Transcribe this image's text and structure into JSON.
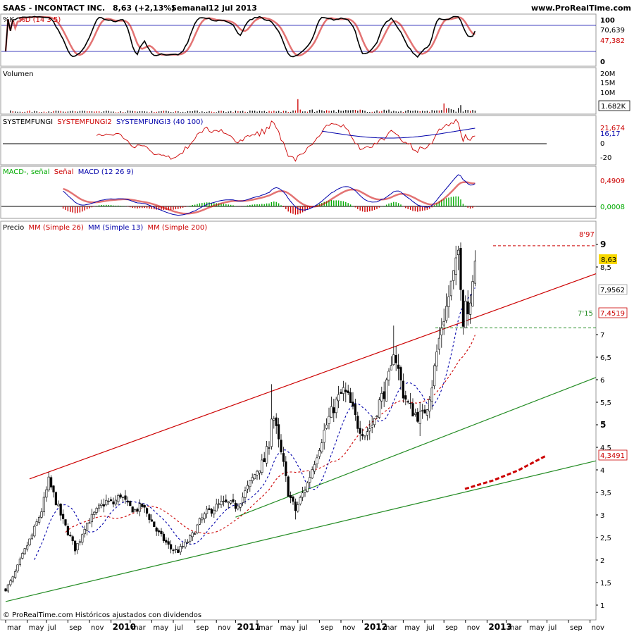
{
  "header": {
    "instrument": "SAAS - INCONTACT INC.",
    "last_change": "8,63 (+2,13%)",
    "period": "Semanal",
    "date": "12 jul 2013",
    "site": "www.ProRealTime.com"
  },
  "footer": {
    "source": "© ProRealTime.com Históricos ajustados con dividendos"
  },
  "colors": {
    "black": "#000000",
    "red": "#cc0000",
    "blue": "#0000aa",
    "green": "#00aa00",
    "pink_fill": "#f0a0a0",
    "green_fill": "#a8e0a0",
    "trend_green": "#228b22",
    "highlight": "#f8d800"
  },
  "x_axis": {
    "labels": [
      {
        "t": 0,
        "text": "mar"
      },
      {
        "t": 9,
        "text": "may"
      },
      {
        "t": 17,
        "text": "jul"
      },
      {
        "t": 26,
        "text": "sep"
      },
      {
        "t": 35,
        "text": "nov"
      },
      {
        "t": 44,
        "text": "2010",
        "bold": true
      },
      {
        "t": 52,
        "text": "mar"
      },
      {
        "t": 61,
        "text": "may"
      },
      {
        "t": 70,
        "text": "jul"
      },
      {
        "t": 79,
        "text": "sep"
      },
      {
        "t": 88,
        "text": "nov"
      },
      {
        "t": 96,
        "text": "2011",
        "bold": true
      },
      {
        "t": 105,
        "text": "mar"
      },
      {
        "t": 114,
        "text": "may"
      },
      {
        "t": 122,
        "text": "jul"
      },
      {
        "t": 131,
        "text": "sep"
      },
      {
        "t": 140,
        "text": "nov"
      },
      {
        "t": 149,
        "text": "2012",
        "bold": true
      },
      {
        "t": 157,
        "text": "mar"
      },
      {
        "t": 166,
        "text": "may"
      },
      {
        "t": 175,
        "text": "jul"
      },
      {
        "t": 183,
        "text": "sep"
      },
      {
        "t": 192,
        "text": "nov"
      },
      {
        "t": 201,
        "text": "2013",
        "bold": true
      },
      {
        "t": 209,
        "text": "mar"
      },
      {
        "t": 218,
        "text": "may"
      },
      {
        "t": 226,
        "text": "jul"
      },
      {
        "t": 235,
        "text": "sep"
      },
      {
        "t": 244,
        "text": "nov"
      }
    ]
  },
  "stoch": {
    "title_k": "%K",
    "title_d": "%D (14 3 5)",
    "axis": [
      "100",
      "0"
    ],
    "k_value": "70,639",
    "d_value": "47,382"
  },
  "volume": {
    "title": "Volumen",
    "axis": [
      "20M",
      "15M",
      "10M"
    ],
    "value": "1.682K"
  },
  "systemfungi": {
    "t1": "SYSTEMFUNGI",
    "t2": "SYSTEMFUNGI2",
    "t3": "SYSTEMFUNGI3 (40 100)",
    "axis": [
      "0",
      "-20"
    ],
    "value_red": "21,674",
    "value_blue": "16,17"
  },
  "macd": {
    "t1": "MACD-, señal",
    "t2": "Señal",
    "t3": "MACD (12 26 9)",
    "value_red": "0,4909",
    "value_green": "0,0008"
  },
  "price": {
    "t1": "Precio",
    "t2": "MM (Simple 26)",
    "t3": "MM (Simple 13)",
    "t4": "MM (Simple 200)",
    "axis": [
      "9",
      "8,5",
      "7",
      "6,5",
      "6",
      "5,5",
      "5",
      "4,5",
      "4",
      "3,5",
      "3",
      "2,5",
      "2",
      "1,5",
      "1"
    ],
    "last": "8,63",
    "mm26": "7,9562",
    "mm13": "7,4519",
    "mm200": "4,3491",
    "resistance_label": "8'97",
    "support_label": "7'15",
    "resistance": 8.97,
    "support": 7.15
  },
  "chart_data": {
    "type": "candlestick",
    "title": "SAAS - INCONTACT INC. Semanal 12 jul 2013",
    "x_range": [
      "2009-03",
      "2013-11"
    ],
    "y_range": [
      0.9,
      9.4
    ],
    "close_anchors": [
      [
        0,
        1.35
      ],
      [
        3,
        1.6
      ],
      [
        7,
        2.1
      ],
      [
        11,
        2.55
      ],
      [
        15,
        3.1
      ],
      [
        18,
        3.75
      ],
      [
        21,
        3.3
      ],
      [
        24,
        2.85
      ],
      [
        27,
        2.5
      ],
      [
        29,
        2.25
      ],
      [
        31,
        2.45
      ],
      [
        33,
        2.75
      ],
      [
        36,
        2.95
      ],
      [
        39,
        3.15
      ],
      [
        42,
        3.3
      ],
      [
        45,
        3.25
      ],
      [
        48,
        3.45
      ],
      [
        51,
        3.2
      ],
      [
        54,
        3.1
      ],
      [
        57,
        3.2
      ],
      [
        60,
        2.95
      ],
      [
        63,
        2.65
      ],
      [
        66,
        2.45
      ],
      [
        69,
        2.25
      ],
      [
        72,
        2.2
      ],
      [
        75,
        2.35
      ],
      [
        78,
        2.55
      ],
      [
        81,
        2.85
      ],
      [
        84,
        3.05
      ],
      [
        87,
        3.15
      ],
      [
        90,
        3.25
      ],
      [
        93,
        3.25
      ],
      [
        96,
        3.2
      ],
      [
        99,
        3.4
      ],
      [
        102,
        3.7
      ],
      [
        105,
        4.0
      ],
      [
        108,
        4.2
      ],
      [
        110,
        4.6
      ],
      [
        111,
        5.2
      ],
      [
        112,
        5.15
      ],
      [
        114,
        4.6
      ],
      [
        116,
        4.1
      ],
      [
        118,
        3.5
      ],
      [
        121,
        3.1
      ],
      [
        123,
        3.35
      ],
      [
        126,
        3.7
      ],
      [
        129,
        4.2
      ],
      [
        132,
        4.7
      ],
      [
        135,
        5.15
      ],
      [
        138,
        5.5
      ],
      [
        141,
        5.75
      ],
      [
        143,
        5.6
      ],
      [
        145,
        5.3
      ],
      [
        147,
        5.0
      ],
      [
        150,
        4.8
      ],
      [
        153,
        5.0
      ],
      [
        156,
        5.5
      ],
      [
        159,
        5.85
      ],
      [
        161,
        6.2
      ],
      [
        162,
        6.7
      ],
      [
        164,
        6.2
      ],
      [
        166,
        5.7
      ],
      [
        168,
        5.45
      ],
      [
        170,
        5.3
      ],
      [
        172,
        5.2
      ],
      [
        174,
        5.2
      ],
      [
        176,
        5.45
      ],
      [
        178,
        5.9
      ],
      [
        180,
        6.6
      ],
      [
        182,
        7.2
      ],
      [
        184,
        7.6
      ],
      [
        186,
        8.1
      ],
      [
        188,
        8.5
      ],
      [
        189,
        8.85
      ],
      [
        190,
        8.2
      ],
      [
        191,
        7.35
      ],
      [
        192,
        7.8
      ],
      [
        193,
        7.5
      ],
      [
        194,
        7.9
      ],
      [
        195,
        8.35
      ],
      [
        196,
        8.63
      ]
    ],
    "indicators": [
      "MM (Simple 26)",
      "MM (Simple 13)",
      "MM (Simple 200)"
    ],
    "lines": {
      "upper_channel": [
        [
          10,
          3.8
        ],
        [
          248,
          8.35
        ]
      ],
      "lower_trend_1": [
        [
          0,
          1.08
        ],
        [
          248,
          4.2
        ]
      ],
      "lower_trend_2": [
        [
          96,
          2.95
        ],
        [
          248,
          6.05
        ]
      ],
      "horizontal_resistance": 8.97,
      "horizontal_support": 7.15
    }
  }
}
